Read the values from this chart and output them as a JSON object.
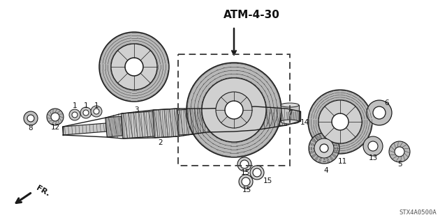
{
  "title": "ATM-4-30",
  "part_code": "STX4A0500A",
  "direction_label": "FR.",
  "bg_color": "#ffffff",
  "lc": "#1a1a1a",
  "tc": "#111111",
  "gray_fill": "#c8c8c8",
  "light_gray": "#e0e0e0",
  "dark_gray": "#888888",
  "hatch_color": "#444444"
}
